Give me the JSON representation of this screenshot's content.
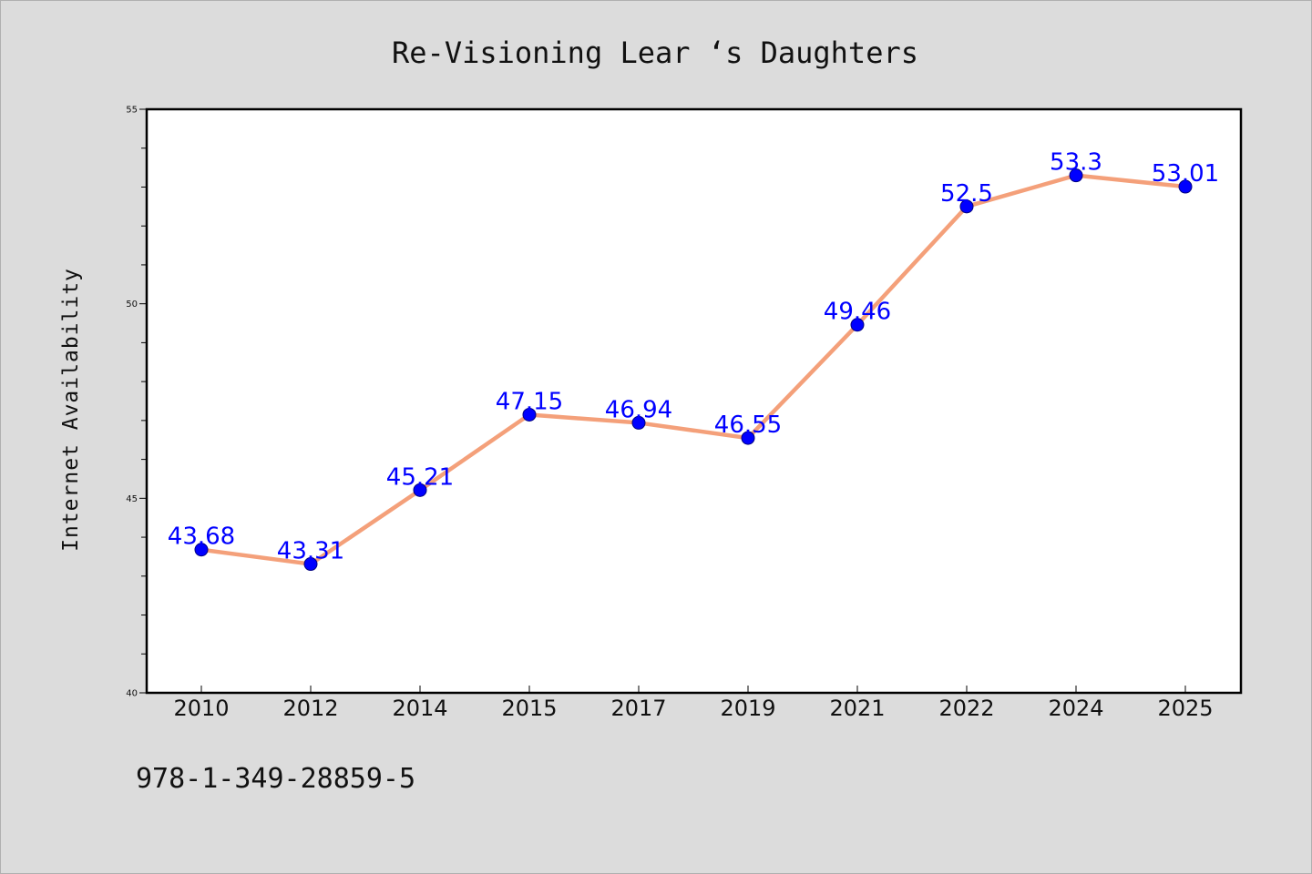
{
  "chart_data": {
    "type": "line",
    "title": "Re-Visioning Lear ‘s Daughters",
    "xlabel": "",
    "ylabel": "Internet Availability",
    "categories": [
      "2010",
      "2012",
      "2014",
      "2015",
      "2017",
      "2019",
      "2021",
      "2022",
      "2024",
      "2025"
    ],
    "series": [
      {
        "values": [
          43.68,
          43.31,
          45.21,
          47.15,
          46.94,
          46.55,
          49.46,
          52.5,
          53.3,
          53.01
        ],
        "labels": [
          "43.68",
          "43.31",
          "45.21",
          "47.15",
          "46.94",
          "46.55",
          "49.46",
          "52.5",
          "53.3",
          "53.01"
        ]
      }
    ],
    "ylim": [
      40,
      55
    ],
    "yticks_major": [
      40,
      45,
      50,
      55
    ],
    "yticks_major_labels": [
      "40",
      "45",
      "50",
      "55"
    ],
    "ytick_minor_step": 1,
    "grid": false,
    "legend": "none",
    "colors": {
      "line": "#f4a07a",
      "marker": "#0000ff",
      "marker_edge": "#000080",
      "data_label": "#0000ff",
      "plot_background": "#ffffff",
      "figure_background": "#dcdcdc"
    }
  },
  "footer": {
    "isbn": "978-1-349-28859-5"
  }
}
